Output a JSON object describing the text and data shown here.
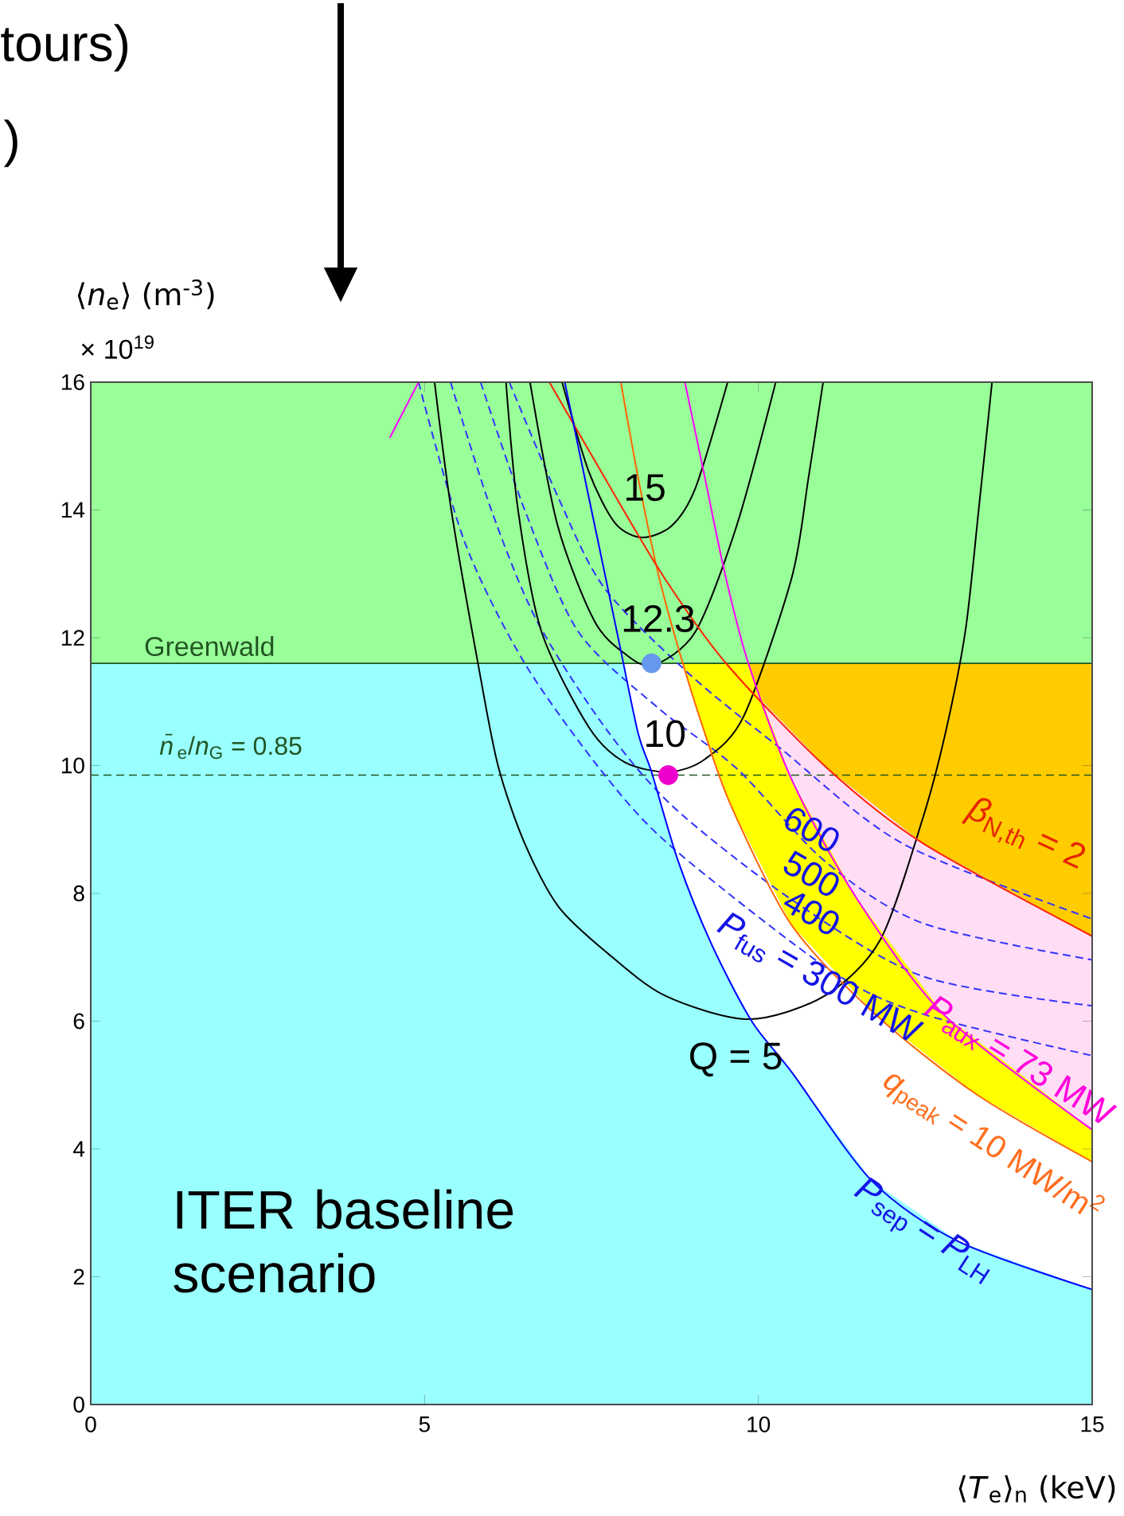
{
  "chart_data": {
    "type": "line",
    "xlabel": "⟨*T*$_{e}$⟩$_{n}$ (keV)",
    "ylabel": "⟨*n*$_{e}$⟩ (m$^{-3}$)",
    "xlim": [
      0,
      15
    ],
    "ylim": [
      0,
      16
    ],
    "xticks": [
      0,
      5,
      10,
      15
    ],
    "yticks": [
      0,
      2,
      4,
      6,
      8,
      10,
      12,
      14,
      16
    ],
    "bands": [
      {
        "axis": "y",
        "from": 11.6,
        "to": 16,
        "color": "#99ff99"
      }
    ],
    "ref_lines": [
      {
        "axis": "y",
        "value": 11.6,
        "label": "Greenwald",
        "color": "#225522",
        "line_style": "solid"
      },
      {
        "axis": "y",
        "value": 9.85,
        "color": "#225522",
        "line_style": "dashed"
      }
    ],
    "annotations": [
      "tours)",
      ")",
      "× 10$^{19}$",
      "ITER baseline scenario",
      "15",
      "12.3",
      "10",
      "Q = 5",
      "600",
      "500",
      "400",
      "*P*$_{fus}$ = 300 MW",
      "*β*$_{N,th}$ = 2",
      "*P*$_{aux}$ = 73 MW",
      "*q*$_{peak}$ = 10 MW/m$^{2}$",
      "*P*$_{sep}$ = *P*$_{LH}$",
      "*n̄*$_{e}$/*n*$_{G}$ = 0.85"
    ],
    "series": [
      {
        "type": "area",
        "color": "#ffcc00",
        "x": [
          9.54,
          15
        ],
        "values": [
          11.6,
          11.6
        ]
      },
      {
        "type": "area",
        "color": "#ffddf5",
        "x": [
          9.54,
          11.04,
          12.47,
          15
        ],
        "values": [
          11.57,
          9.95,
          8.78,
          7.33
        ]
      },
      {
        "type": "area",
        "color": "#ffff00",
        "x": [
          8.87,
          9.85,
          10.5,
          11.45,
          12.78,
          15
        ],
        "values": [
          11.6,
          11.6,
          9.78,
          7.96,
          6.1,
          4.3
        ]
      },
      {
        "type": "area",
        "color": "#ffffff",
        "x": [
          7.98,
          8.87,
          9.2,
          9.6,
          10.5,
          11.76,
          13.26,
          15
        ],
        "values": [
          11.6,
          11.6,
          10.5,
          9.35,
          7.5,
          6.1,
          4.86,
          3.8
        ]
      },
      {
        "type": "area",
        "color": "#99ffff",
        "x": [
          0,
          7.98,
          8.2,
          8.4,
          8.8,
          9.3,
          9.9,
          10.5,
          11.7,
          13,
          15
        ],
        "values": [
          11.6,
          11.6,
          10.5,
          9.9,
          8.5,
          7.2,
          6.0,
          5.2,
          3.5,
          2.55,
          1.8
        ]
      },
      {
        "color": "#3333ff",
        "line_style": "dashed",
        "x": [
          4.91,
          5.6,
          6.5,
          7.7,
          8.73,
          11.1,
          12.5,
          15
        ],
        "values": [
          16,
          13.5,
          11.6,
          9.85,
          8.7,
          6.78,
          6.1,
          5.46
        ]
      },
      {
        "color": "#3333ff",
        "line_style": "dashed",
        "x": [
          5.39,
          6.0,
          6.68,
          7.7,
          8.73,
          10.5,
          12.47,
          15
        ],
        "values": [
          16,
          14,
          12.27,
          10.6,
          9.35,
          7.9,
          6.7,
          6.24
        ]
      },
      {
        "color": "#3333ff",
        "line_style": "dashed",
        "x": [
          5.84,
          6.5,
          7.3,
          8.5,
          9.68,
          11,
          12.47,
          15
        ],
        "values": [
          16,
          14,
          12.1,
          10.9,
          9.95,
          8.5,
          7.53,
          6.96
        ]
      },
      {
        "color": "#3333ff",
        "line_style": "dashed",
        "x": [
          6.27,
          7.0,
          7.7,
          9.0,
          10.33,
          12.16,
          15
        ],
        "values": [
          16,
          14.2,
          12.77,
          11.4,
          10.27,
          8.78,
          7.6
        ]
      },
      {
        "color": "#000000",
        "line_style": "solid",
        "x": [
          5.15,
          5.4,
          5.8,
          6.1,
          6.5,
          7.0,
          7.7,
          8.6,
          9.85,
          11,
          11.83,
          12.47,
          12.8,
          13.1,
          13.3,
          13.5
        ],
        "values": [
          16,
          14,
          11.6,
          10,
          8.78,
          7.8,
          7.1,
          6.4,
          6.03,
          6.4,
          7.28,
          9.2,
          10.5,
          12.1,
          14,
          16
        ]
      },
      {
        "color": "#000000",
        "line_style": "solid",
        "x": [
          6.22,
          6.4,
          6.75,
          7.46,
          8.0,
          8.66,
          9.2,
          9.78,
          10.5,
          10.75,
          10.97
        ],
        "values": [
          16,
          14,
          12.1,
          10.6,
          10.05,
          9.9,
          10.1,
          10.77,
          12.94,
          14.5,
          16
        ]
      },
      {
        "color": "#000000",
        "line_style": "solid",
        "x": [
          6.58,
          6.99,
          7.54,
          8.0,
          8.42,
          9.06,
          9.68,
          10.26
        ],
        "values": [
          16,
          13.77,
          12.27,
          11.75,
          11.57,
          12.1,
          13.77,
          16
        ]
      },
      {
        "color": "#000000",
        "line_style": "solid",
        "x": [
          7.06,
          7.46,
          7.85,
          8.25,
          8.7,
          9.06,
          9.54
        ],
        "values": [
          16,
          14.6,
          13.8,
          13.57,
          13.75,
          14.35,
          16
        ]
      },
      {
        "color": "#ff6600",
        "line_style": "solid",
        "x": [
          7.94,
          8.2,
          8.5,
          8.82,
          9.2,
          9.6,
          10.5,
          11.76,
          13.26,
          15
        ],
        "values": [
          16,
          14.5,
          13,
          11.77,
          10.5,
          9.35,
          7.5,
          6.1,
          4.86,
          3.8
        ]
      },
      {
        "color": "#ff00ff",
        "line_style": "solid",
        "x": [
          8.9,
          9.2,
          9.5,
          9.85,
          10.5,
          11.45,
          12.78,
          15
        ],
        "values": [
          16,
          14.5,
          13,
          11.6,
          9.78,
          7.96,
          6.1,
          4.3
        ]
      },
      {
        "color": "#ff00ff",
        "line_style": "solid",
        "x": [
          4.48,
          4.91
        ],
        "values": [
          15.13,
          16
        ]
      },
      {
        "color": "#ff2200",
        "line_style": "solid",
        "x": [
          6.87,
          7.7,
          8.59,
          9.54,
          11.04,
          12.47,
          15
        ],
        "values": [
          16,
          14.5,
          12.94,
          11.57,
          9.95,
          8.78,
          7.33
        ]
      },
      {
        "color": "#0000ff",
        "line_style": "solid",
        "x": [
          7.1,
          7.5,
          7.9,
          8.2,
          8.4,
          8.8,
          9.3,
          9.9,
          10.5,
          11.7,
          13,
          15
        ],
        "values": [
          16,
          14,
          12,
          10.5,
          9.9,
          8.5,
          7.2,
          6.0,
          5.2,
          3.5,
          2.55,
          1.8
        ]
      },
      {
        "type": "scatter",
        "marker": "circle",
        "color": "#6699ee",
        "x": [
          8.4
        ],
        "values": [
          11.6
        ]
      },
      {
        "type": "scatter",
        "marker": "circle",
        "color": "#ee00cc",
        "x": [
          8.65
        ],
        "values": [
          9.85
        ]
      }
    ]
  }
}
